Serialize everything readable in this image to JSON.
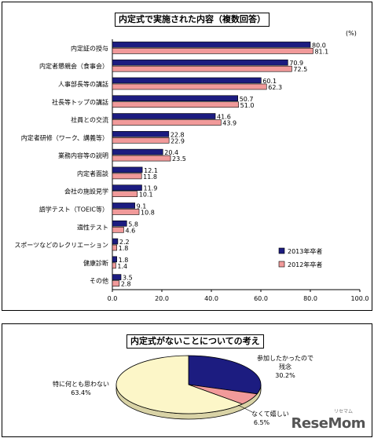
{
  "chart_data": [
    {
      "type": "bar",
      "orientation": "horizontal",
      "title": "内定式で実施された内容（複数回答）",
      "unit": "(%)",
      "categories": [
        "内定証の授与",
        "内定者懇親会（食事会）",
        "人事部長等の講話",
        "社長等トップの講話",
        "社員との交流",
        "内定者研修（ワーク、講義等）",
        "業務内容等の説明",
        "内定者面談",
        "会社の施設見学",
        "語学テスト（TOEIC等）",
        "適性テスト",
        "スポーツなどのレクリエーション",
        "健康診断",
        "その他"
      ],
      "series": [
        {
          "name": "2013年卒者",
          "color": "#1c1c80",
          "values": [
            80.0,
            70.9,
            60.1,
            50.7,
            41.6,
            22.8,
            20.4,
            12.1,
            11.9,
            9.1,
            5.8,
            2.2,
            1.8,
            3.5
          ],
          "labels": [
            "80.0",
            "70.9",
            "60.1",
            "50.7",
            "41.6",
            "22.8",
            "20.4",
            "12.1",
            "11.9",
            "9.1",
            "5.8",
            "2.2",
            "1.8",
            "3.5"
          ]
        },
        {
          "name": "2012年卒者",
          "color": "#f19a9a",
          "values": [
            81.1,
            72.5,
            62.3,
            51.0,
            43.9,
            22.9,
            23.5,
            11.8,
            10.1,
            10.8,
            4.6,
            1.8,
            1.4,
            2.8
          ],
          "labels": [
            "81.1",
            "72.5",
            "62.3",
            "51.0",
            "43.9",
            "22.9",
            "23.5",
            "11.8",
            "10.1",
            "10.8",
            "4.6",
            "1.8",
            "1.4",
            "2.8"
          ]
        }
      ],
      "xlim": [
        0,
        100
      ],
      "xticks": [
        "0.0",
        "20.0",
        "40.0",
        "60.0",
        "80.0",
        "100.0"
      ],
      "legend_position": "bottom-right"
    },
    {
      "type": "pie",
      "title": "内定式がないことについての考え",
      "slices": [
        {
          "label": "参加したかったので残念",
          "line1": "参加したかったので",
          "line2": "残念",
          "value": 30.2,
          "display": "30.2%",
          "color": "#1c1c80"
        },
        {
          "label": "なくて嬉しい",
          "line1": "なくて嬉しい",
          "line2": "",
          "value": 6.5,
          "display": "6.5%",
          "color": "#f19a9a"
        },
        {
          "label": "特に何とも思わない",
          "line1": "特に何とも思わない",
          "line2": "",
          "value": 63.4,
          "display": "63.4%",
          "color": "#fcf6c8"
        }
      ]
    }
  ],
  "watermark": {
    "text": "ReseMom",
    "sub": "リセマム"
  }
}
